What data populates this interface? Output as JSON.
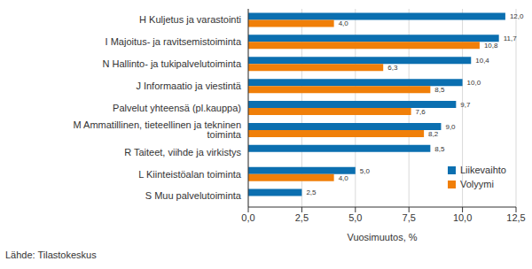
{
  "chart_data": {
    "type": "bar",
    "orientation": "horizontal",
    "categories": [
      "H Kuljetus ja varastointi",
      "I Majoitus- ja ravitsemistoiminta",
      "N Hallinto- ja tukipalvelutoiminta",
      "J Informaatio ja viestintä",
      "Palvelut yhteensä (pl.kauppa)",
      "M Ammatillinen, tieteellinen ja tekninen toiminta",
      "R Taiteet, viihde ja virkistys",
      "L Kiinteistöalan toiminta",
      "S Muu palvelutoiminta"
    ],
    "series": [
      {
        "name": "Liikevaihto",
        "color": "#0b6fb0",
        "values": [
          12.0,
          11.7,
          10.4,
          10.0,
          9.7,
          9.0,
          8.5,
          5.0,
          2.5
        ],
        "value_labels": [
          "12,0",
          "11,7",
          "10,4",
          "10,0",
          "9,7",
          "9,0",
          "8,5",
          "5,0",
          "2,5"
        ]
      },
      {
        "name": "Volyymi",
        "color": "#f07f09",
        "values": [
          4.0,
          10.8,
          6.3,
          8.5,
          7.6,
          8.2,
          null,
          4.0,
          null
        ],
        "value_labels": [
          "4,0",
          "10,8",
          "6,3",
          "8,5",
          "7,6",
          "8,2",
          null,
          "4,0",
          null
        ]
      }
    ],
    "xlim": [
      0,
      12.5
    ],
    "xticks": [
      {
        "value": 0,
        "label": "0,0"
      },
      {
        "value": 2.5,
        "label": "2,5"
      },
      {
        "value": 5,
        "label": "5,0"
      },
      {
        "value": 7.5,
        "label": "7,5"
      },
      {
        "value": 10,
        "label": "10,0"
      },
      {
        "value": 12.5,
        "label": "12,5"
      }
    ],
    "x_label": "Vuosimuutos, %",
    "source": "Lähde: Tilastokeskus",
    "grid": true,
    "legend": "lower right",
    "data_labels": true
  }
}
